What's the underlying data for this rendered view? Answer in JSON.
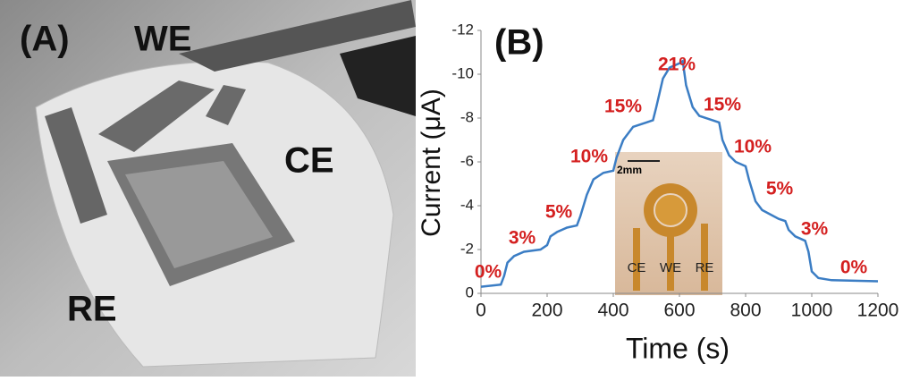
{
  "panel_a": {
    "label": "(A)",
    "electrodes": [
      "WE",
      "CE",
      "RE"
    ]
  },
  "chart_data": {
    "type": "line",
    "panel_label": "(B)",
    "x_label": "Time (s)",
    "y_label": "Current (μA)",
    "x": [
      0,
      60,
      70,
      80,
      100,
      130,
      180,
      200,
      210,
      230,
      260,
      290,
      300,
      320,
      340,
      370,
      400,
      410,
      430,
      460,
      500,
      520,
      530,
      550,
      570,
      600,
      610,
      620,
      640,
      660,
      700,
      720,
      730,
      750,
      770,
      800,
      810,
      830,
      850,
      900,
      920,
      930,
      950,
      980,
      990,
      1000,
      1020,
      1060,
      1200
    ],
    "values": [
      -0.3,
      -0.4,
      -0.8,
      -1.4,
      -1.7,
      -1.9,
      -2.0,
      -2.2,
      -2.6,
      -2.8,
      -3.0,
      -3.1,
      -3.5,
      -4.5,
      -5.2,
      -5.5,
      -5.6,
      -6.2,
      -7.0,
      -7.6,
      -7.8,
      -7.9,
      -8.5,
      -9.8,
      -10.3,
      -10.5,
      -10.6,
      -9.5,
      -8.5,
      -8.1,
      -7.9,
      -7.8,
      -7.0,
      -6.3,
      -6.0,
      -5.8,
      -5.2,
      -4.2,
      -3.8,
      -3.4,
      -3.3,
      -2.9,
      -2.6,
      -2.4,
      -1.9,
      -1.0,
      -0.7,
      -0.6,
      -0.55
    ],
    "color": "#3b7dc4",
    "xlim": [
      0,
      1200
    ],
    "xticks": [
      0,
      200,
      400,
      600,
      800,
      1000,
      1200
    ],
    "ylim": [
      0,
      -12
    ],
    "yticks": [
      0,
      -2,
      -4,
      -6,
      -8,
      -10,
      -12
    ],
    "annotations": [
      "0%",
      "3%",
      "5%",
      "10%",
      "15%",
      "21%",
      "15%",
      "10%",
      "5%",
      "3%",
      "0%"
    ],
    "annotation_color": "#d42020",
    "inset": {
      "scale": "2mm",
      "electrodes": [
        "CE",
        "WE",
        "RE"
      ]
    }
  }
}
